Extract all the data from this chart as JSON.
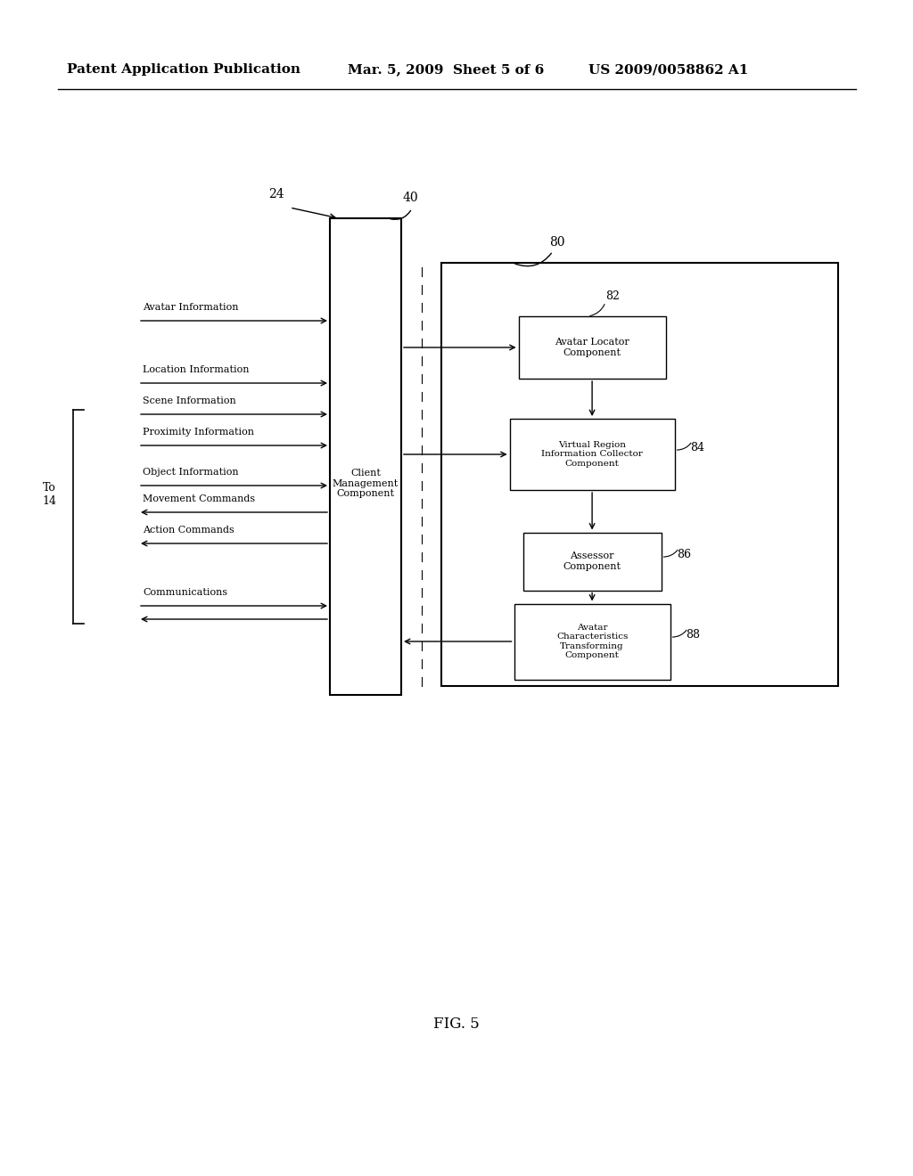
{
  "background_color": "#ffffff",
  "header_left": "Patent Application Publication",
  "header_mid": "Mar. 5, 2009  Sheet 5 of 6",
  "header_right": "US 2009/0058862 A1",
  "fig_label": "FIG. 5",
  "label_24": "24",
  "label_40": "40",
  "label_80": "80",
  "label_82": "82",
  "label_84": "84",
  "label_86": "86",
  "label_88": "88",
  "label_to14": "To\n14",
  "client_mgmt_label": "Client\nManagement\nComponent",
  "box82_label": "Avatar Locator\nComponent",
  "box84_label": "Virtual Region\nInformation Collector\nComponent",
  "box86_label": "Assessor\nComponent",
  "box88_label": "Avatar\nCharacteristics\nTransforming\nComponent"
}
